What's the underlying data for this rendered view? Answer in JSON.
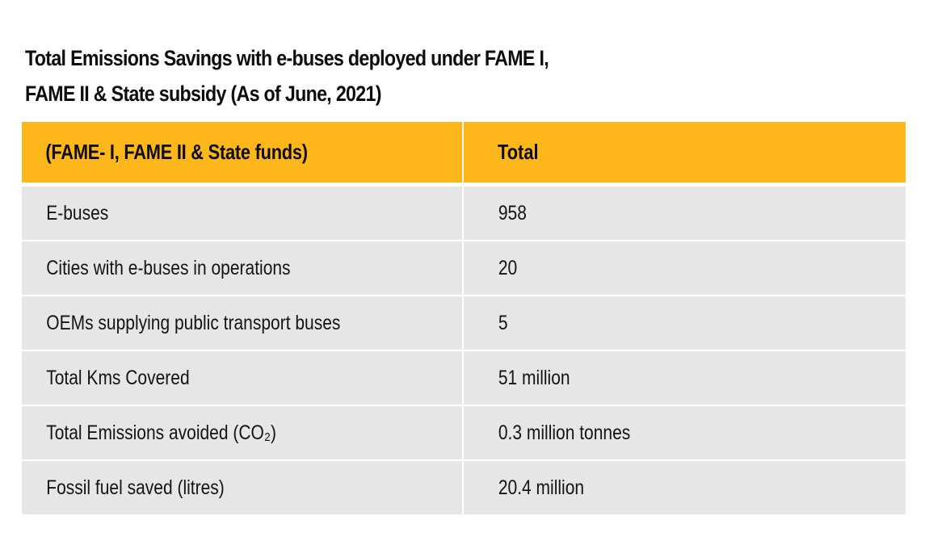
{
  "title": {
    "line1": "Total Emissions Savings with e-buses deployed under FAME I,",
    "line2": "FAME II & State subsidy (As of June, 2021)"
  },
  "table": {
    "headers": [
      "(FAME- I, FAME II & State funds)",
      "Total"
    ],
    "header_color": "#FDB71A",
    "row_color": "#E6E6E6",
    "rows": [
      {
        "label": "E-buses",
        "value": "958"
      },
      {
        "label": "Cities with e-buses in operations",
        "value": "20"
      },
      {
        "label": "OEMs supplying public transport buses",
        "value": "5"
      },
      {
        "label": "Total Kms Covered",
        "value": "51 million"
      },
      {
        "label": "Total Emissions avoided (CO₂)",
        "value": "0.3 million tonnes"
      },
      {
        "label": "Fossil fuel saved (litres)",
        "value": "20.4 million"
      }
    ]
  }
}
